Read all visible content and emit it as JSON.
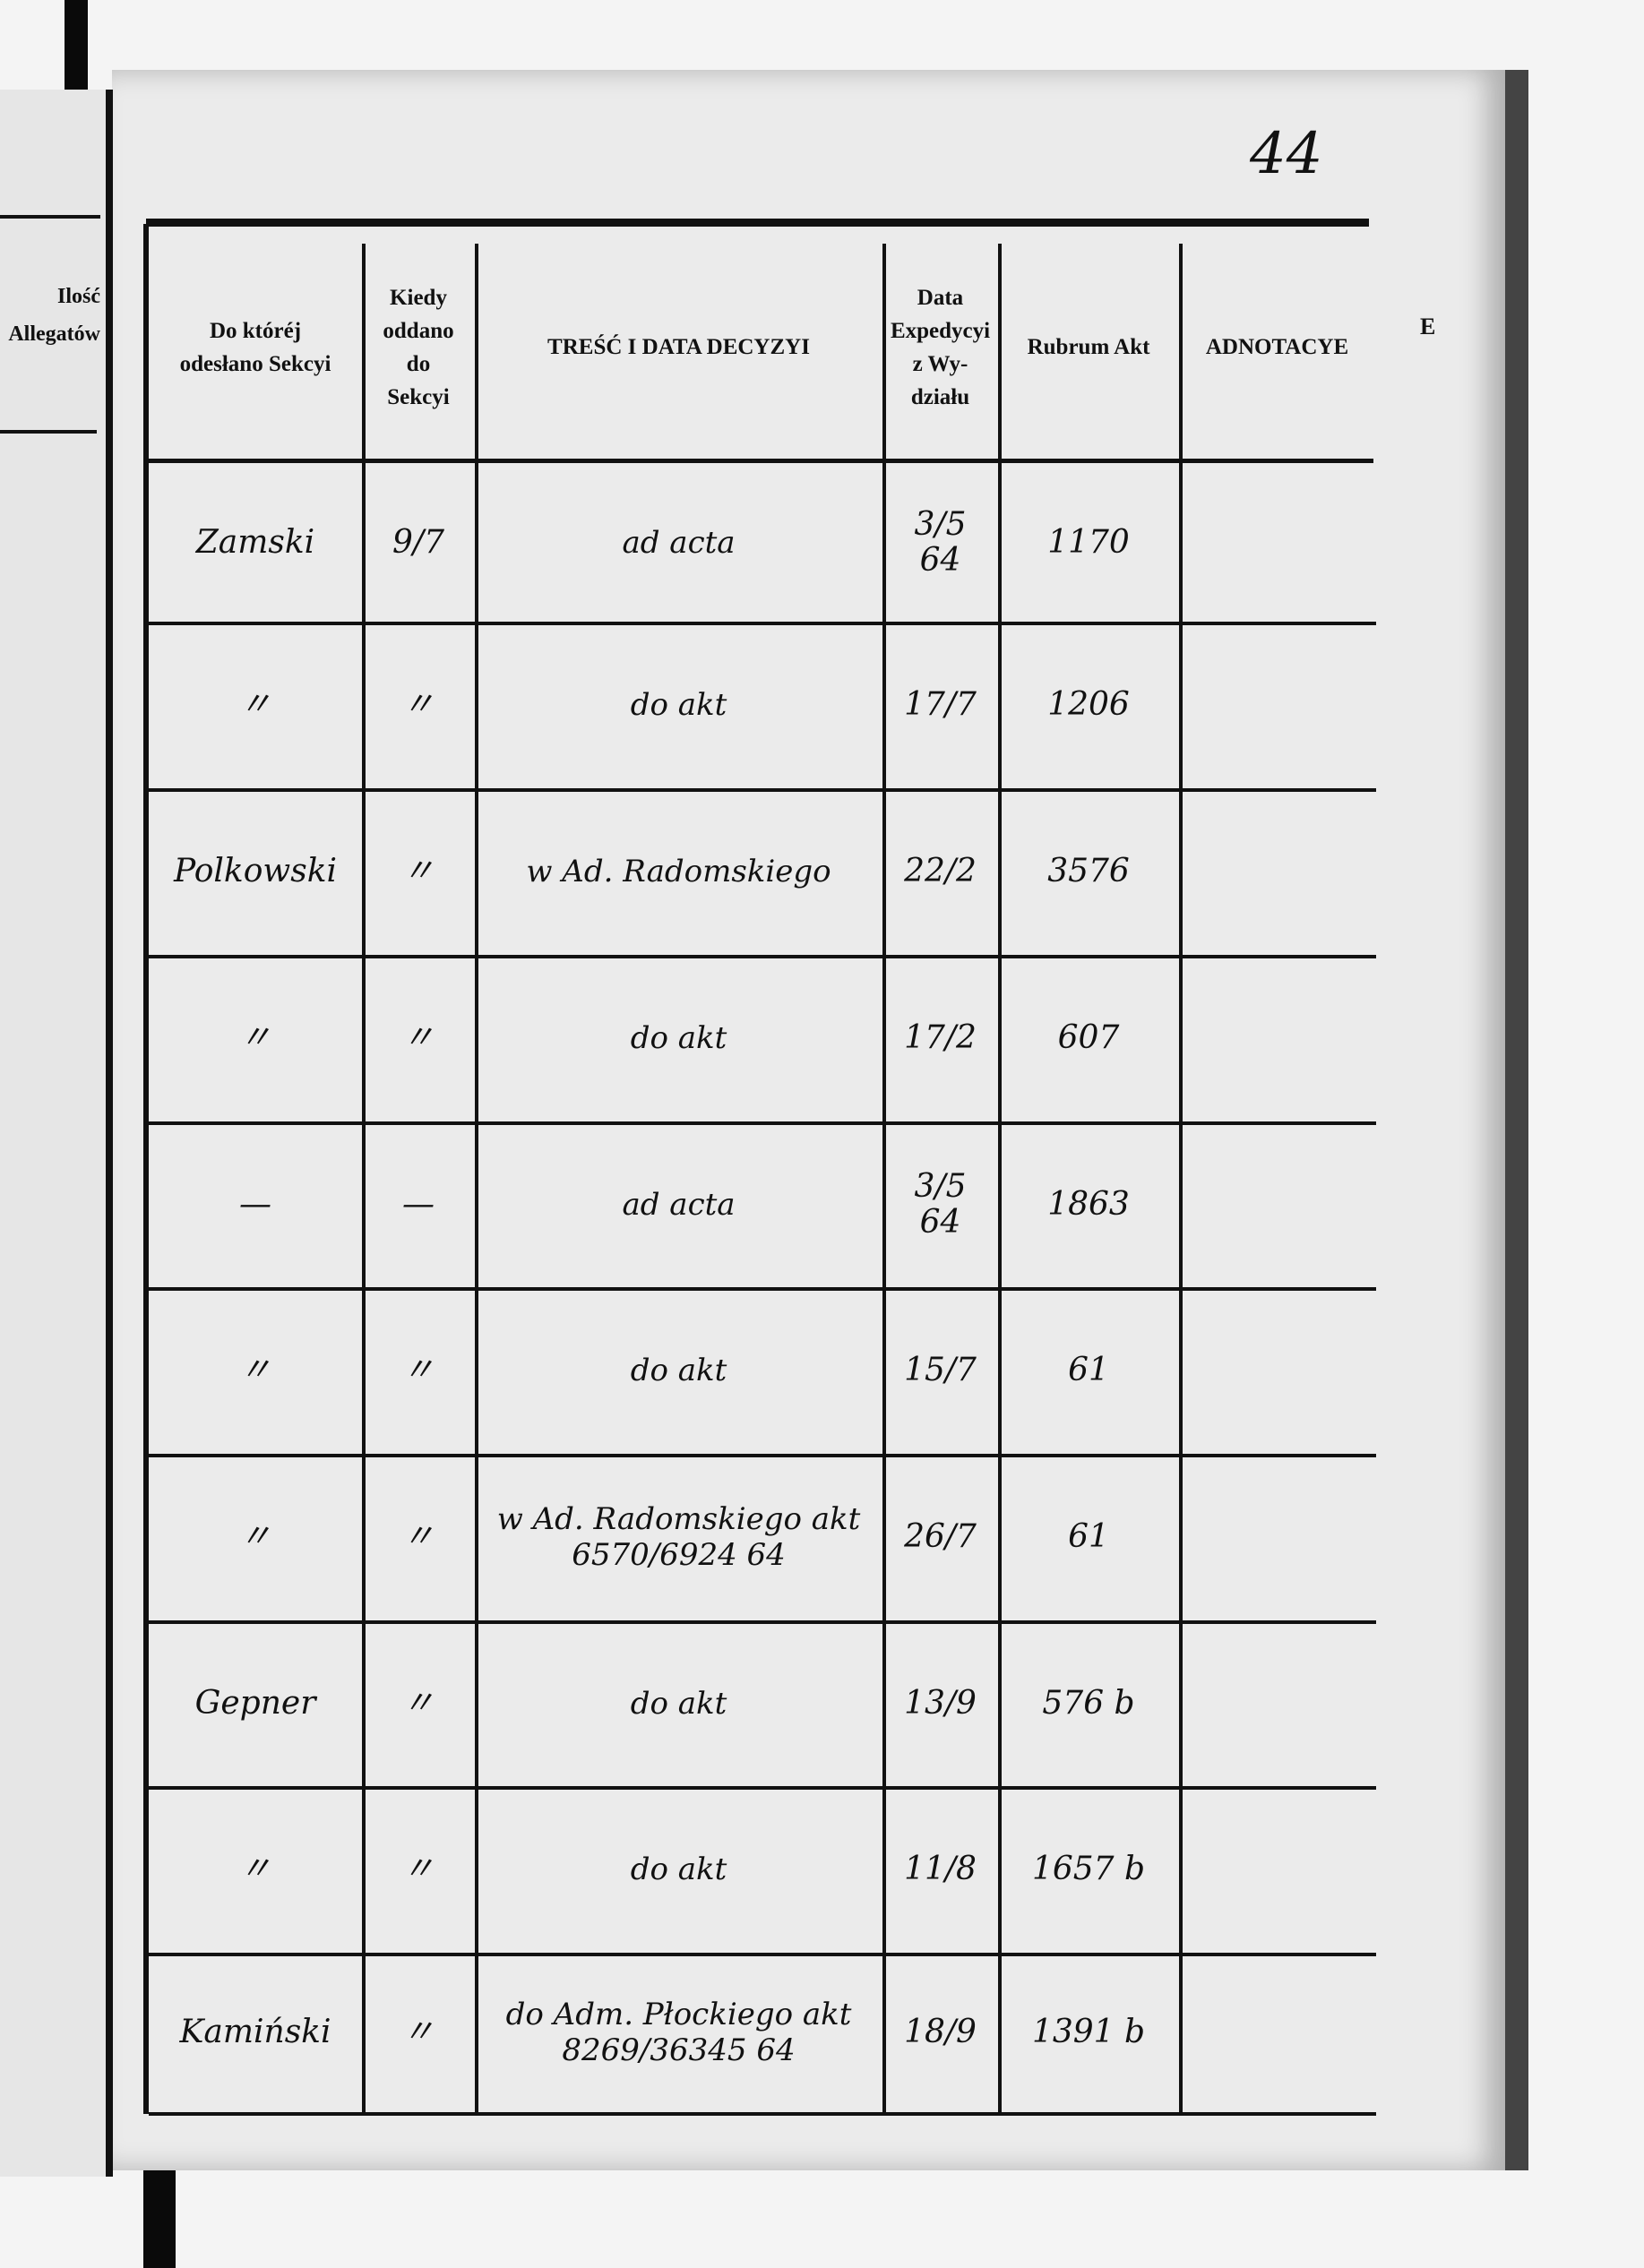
{
  "page_number": "44",
  "left_page": {
    "header": [
      "Ilość",
      "Allegatów"
    ]
  },
  "right_edge_fragment": "E",
  "columns": [
    {
      "label": [
        "Do któréj",
        "odesłano Sekcyi"
      ]
    },
    {
      "label": [
        "Kiedy",
        "oddano",
        "do",
        "Sekcyi"
      ]
    },
    {
      "label": [
        "TREŚĆ I DATA DECYZYI"
      ]
    },
    {
      "label": [
        "Data",
        "Expedycyi",
        "z Wy-",
        "działu"
      ]
    },
    {
      "label": [
        "Rubrum Akt"
      ]
    },
    {
      "label": [
        "ADNOTACYE"
      ]
    }
  ],
  "rows": [
    {
      "sekcja": "Zamski",
      "kiedy": "9/7",
      "tresc": "ad acta",
      "data_exp": "3/5 64",
      "rubrum": "1170",
      "adnotacye": ""
    },
    {
      "sekcja": "〃",
      "kiedy": "〃",
      "tresc": "do akt",
      "data_exp": "17/7",
      "rubrum": "1206",
      "adnotacye": ""
    },
    {
      "sekcja": "Polkowski",
      "kiedy": "〃",
      "tresc": "w Ad. Radomskiego",
      "data_exp": "22/2",
      "rubrum": "3576",
      "adnotacye": ""
    },
    {
      "sekcja": "〃",
      "kiedy": "〃",
      "tresc": "do akt",
      "data_exp": "17/2",
      "rubrum": "607",
      "adnotacye": ""
    },
    {
      "sekcja": "—",
      "kiedy": "—",
      "tresc": "ad acta",
      "data_exp": "3/5 64",
      "rubrum": "1863",
      "adnotacye": ""
    },
    {
      "sekcja": "〃",
      "kiedy": "〃",
      "tresc": "do akt",
      "data_exp": "15/7",
      "rubrum": "61",
      "adnotacye": ""
    },
    {
      "sekcja": "〃",
      "kiedy": "〃",
      "tresc": "w Ad. Radomskiego akt 6570/6924 64",
      "data_exp": "26/7",
      "rubrum": "61",
      "adnotacye": ""
    },
    {
      "sekcja": "Gepner",
      "kiedy": "〃",
      "tresc": "do akt",
      "data_exp": "13/9",
      "rubrum": "576 b",
      "adnotacye": ""
    },
    {
      "sekcja": "〃",
      "kiedy": "〃",
      "tresc": "do akt",
      "data_exp": "11/8",
      "rubrum": "1657 b",
      "adnotacye": ""
    },
    {
      "sekcja": "Kamiński",
      "kiedy": "〃",
      "tresc": "do Adm. Płockiego akt 8269/36345 64",
      "data_exp": "18/9",
      "rubrum": "1391 b",
      "adnotacye": ""
    }
  ]
}
